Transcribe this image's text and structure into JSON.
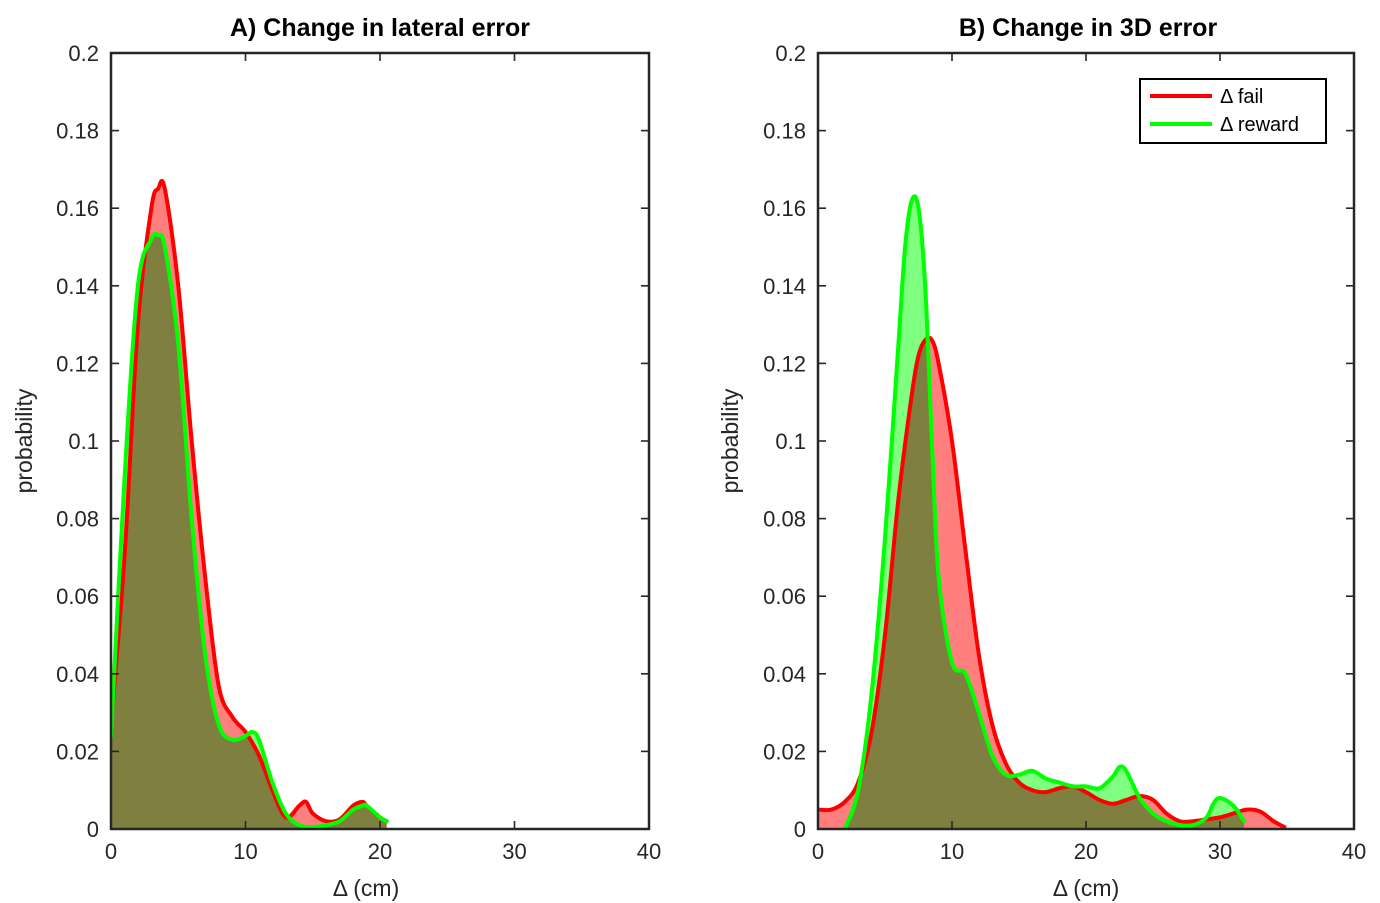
{
  "colors": {
    "fail": "#ff0000",
    "reward": "#00ff00",
    "fail_fill": "#ff7f7f",
    "reward_fill": "#7fff7f",
    "overlap_fill": "#7fbf3f"
  },
  "chart_data": [
    {
      "type": "area",
      "title": "A) Change in lateral error",
      "xlabel": "Δ (cm)",
      "ylabel": "probability",
      "xlim": [
        0,
        40
      ],
      "ylim": [
        0,
        0.2
      ],
      "xticks": [
        "0",
        "10",
        "20",
        "30",
        "40"
      ],
      "yticks": [
        "0",
        "0.02",
        "0.04",
        "0.06",
        "0.08",
        "0.1",
        "0.12",
        "0.14",
        "0.16",
        "0.18",
        "0.2"
      ],
      "grid": false,
      "legend": null,
      "series": [
        {
          "name": "Δ fail",
          "x": [
            0,
            1,
            2,
            3,
            3.5,
            4,
            5,
            6,
            7,
            8,
            9,
            10,
            11,
            12,
            13,
            14,
            14.5,
            15,
            16,
            17,
            18,
            18.7,
            19,
            20,
            20.5
          ],
          "y": [
            0.027,
            0.07,
            0.13,
            0.16,
            0.165,
            0.165,
            0.14,
            0.1,
            0.065,
            0.037,
            0.029,
            0.025,
            0.019,
            0.01,
            0.003,
            0.006,
            0.007,
            0.004,
            0.002,
            0.0025,
            0.006,
            0.007,
            0.006,
            0.003,
            0.002
          ]
        },
        {
          "name": "Δ reward",
          "x": [
            0,
            1,
            2,
            3,
            3.5,
            4,
            5,
            6,
            7,
            8,
            9,
            10,
            10.5,
            11,
            12,
            13,
            14,
            15,
            16,
            17,
            18,
            18.7,
            19,
            20,
            20.5
          ],
          "y": [
            0.024,
            0.09,
            0.14,
            0.152,
            0.153,
            0.15,
            0.125,
            0.08,
            0.045,
            0.027,
            0.023,
            0.024,
            0.025,
            0.023,
            0.012,
            0.004,
            0.001,
            0.0005,
            0.001,
            0.002,
            0.005,
            0.006,
            0.006,
            0.003,
            0.002
          ]
        }
      ]
    },
    {
      "type": "area",
      "title": "B)  Change in 3D error",
      "xlabel": "Δ (cm)",
      "ylabel": "probability",
      "xlim": [
        0,
        40
      ],
      "ylim": [
        0,
        0.2
      ],
      "xticks": [
        "0",
        "10",
        "20",
        "30",
        "40"
      ],
      "yticks": [
        "0",
        "0.02",
        "0.04",
        "0.06",
        "0.08",
        "0.1",
        "0.12",
        "0.14",
        "0.16",
        "0.18",
        "0.2"
      ],
      "grid": false,
      "legend": "top-right",
      "series": [
        {
          "name": "Δ fail",
          "x": [
            0,
            1,
            2,
            3,
            4,
            5,
            6,
            7,
            7.5,
            8,
            8.5,
            9,
            10,
            11,
            12,
            13,
            14,
            15,
            16,
            17,
            18,
            19,
            20,
            21,
            22,
            23,
            24,
            25,
            26,
            27,
            28,
            29,
            30,
            31,
            32,
            33,
            34,
            34.8
          ],
          "y": [
            0.005,
            0.005,
            0.007,
            0.012,
            0.025,
            0.05,
            0.085,
            0.112,
            0.122,
            0.126,
            0.126,
            0.12,
            0.1,
            0.072,
            0.045,
            0.027,
            0.017,
            0.012,
            0.01,
            0.0095,
            0.0105,
            0.011,
            0.0095,
            0.0075,
            0.0065,
            0.0075,
            0.0085,
            0.0075,
            0.004,
            0.002,
            0.002,
            0.0025,
            0.003,
            0.004,
            0.005,
            0.0045,
            0.002,
            0.0005
          ]
        },
        {
          "name": "Δ reward",
          "x": [
            2,
            3,
            4,
            5,
            6,
            6.5,
            7,
            7.5,
            8,
            8.5,
            9,
            10,
            11,
            12,
            13,
            14,
            15,
            16,
            17,
            18,
            19,
            20,
            21,
            22,
            22.5,
            23,
            24,
            25,
            26,
            27,
            28,
            29,
            29.5,
            30,
            31,
            31.8
          ],
          "y": [
            0.0,
            0.01,
            0.035,
            0.075,
            0.125,
            0.15,
            0.162,
            0.16,
            0.14,
            0.1,
            0.065,
            0.043,
            0.04,
            0.03,
            0.019,
            0.014,
            0.014,
            0.015,
            0.013,
            0.012,
            0.011,
            0.011,
            0.0105,
            0.0135,
            0.016,
            0.015,
            0.008,
            0.004,
            0.002,
            0.001,
            0.001,
            0.003,
            0.0065,
            0.008,
            0.006,
            0.002
          ]
        }
      ]
    }
  ]
}
